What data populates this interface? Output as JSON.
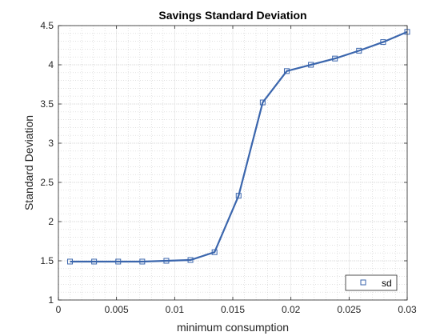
{
  "chart_data": {
    "type": "line",
    "title": "Savings Standard Deviation",
    "xlabel": "minimum consumption",
    "ylabel": "Standard Deviation",
    "xlim": [
      0,
      0.03
    ],
    "ylim": [
      1,
      4.5
    ],
    "xticks": [
      0,
      0.005,
      0.01,
      0.015,
      0.02,
      0.025,
      0.03
    ],
    "xtick_labels": [
      "0",
      "0.005",
      "0.01",
      "0.015",
      "0.02",
      "0.025",
      "0.03"
    ],
    "yticks": [
      1,
      1.5,
      2,
      2.5,
      3,
      3.5,
      4,
      4.5
    ],
    "ytick_labels": [
      "1",
      "1.5",
      "2",
      "2.5",
      "3",
      "3.5",
      "4",
      "4.5"
    ],
    "grid": true,
    "minor_grid": true,
    "legend_position": "bottom-right",
    "series": [
      {
        "name": "sd",
        "color": "#3b66ad",
        "marker": "square",
        "x": [
          0.001,
          0.003071,
          0.005143,
          0.007214,
          0.009286,
          0.011357,
          0.013429,
          0.0155,
          0.017571,
          0.019643,
          0.021714,
          0.023786,
          0.025857,
          0.027929,
          0.03
        ],
        "y": [
          1.49,
          1.49,
          1.49,
          1.49,
          1.5,
          1.51,
          1.61,
          2.33,
          3.52,
          3.92,
          4.0,
          4.08,
          4.18,
          4.29,
          4.42
        ]
      }
    ]
  }
}
